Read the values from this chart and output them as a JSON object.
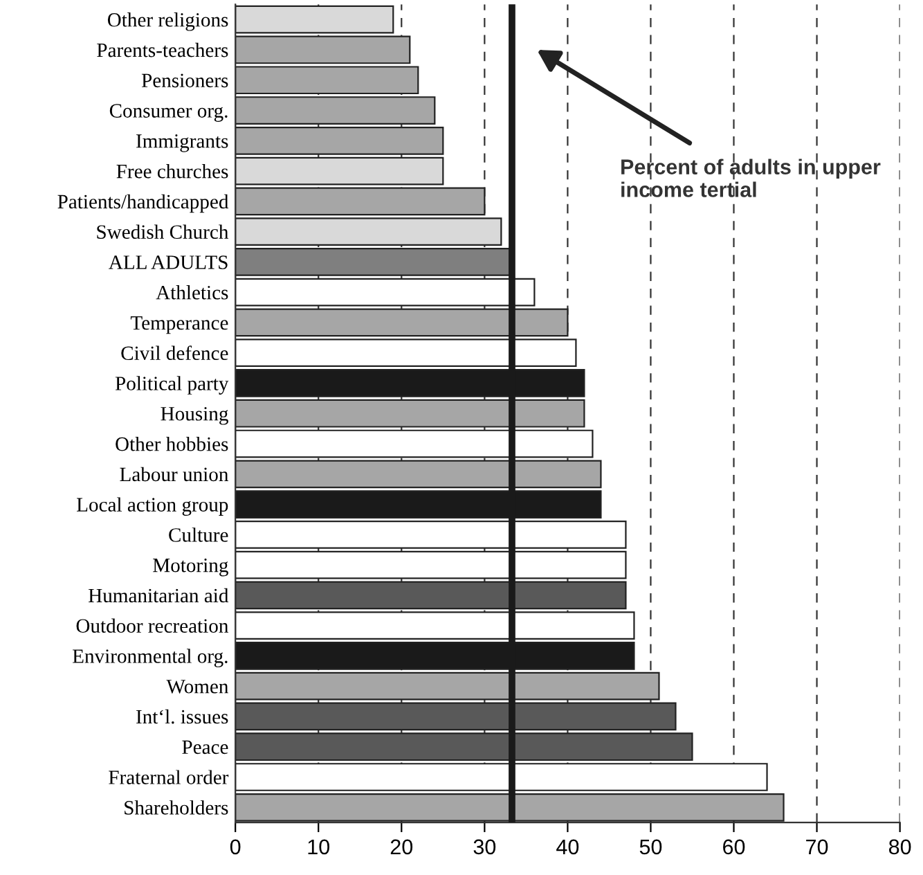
{
  "chart_data": {
    "type": "bar",
    "orientation": "horizontal",
    "categories": [
      "Other religions",
      "Parents-teachers",
      "Pensioners",
      "Consumer org.",
      "Immigrants",
      "Free churches",
      "Patients/handicapped",
      "Swedish Church",
      "ALL ADULTS",
      "Athletics",
      "Temperance",
      "Civil defence",
      "Political party",
      "Housing",
      "Other hobbies",
      "Labour union",
      "Local action group",
      "Culture",
      "Motoring",
      "Humanitarian aid",
      "Outdoor recreation",
      "Environmental org.",
      "Women",
      "Int‘l. issues",
      "Peace",
      "Fraternal order",
      "Shareholders"
    ],
    "values": [
      19,
      21,
      22,
      24,
      25,
      25,
      30,
      32,
      33,
      36,
      40,
      41,
      42,
      42,
      43,
      44,
      44,
      47,
      47,
      47,
      48,
      48,
      51,
      53,
      55,
      64,
      66
    ],
    "colors": [
      "#d9d9d9",
      "#a6a6a6",
      "#a6a6a6",
      "#a6a6a6",
      "#a6a6a6",
      "#d9d9d9",
      "#a6a6a6",
      "#d9d9d9",
      "#7f7f7f",
      "#ffffff",
      "#a6a6a6",
      "#ffffff",
      "#1a1a1a",
      "#a6a6a6",
      "#ffffff",
      "#a6a6a6",
      "#1a1a1a",
      "#ffffff",
      "#ffffff",
      "#595959",
      "#ffffff",
      "#1a1a1a",
      "#a6a6a6",
      "#595959",
      "#595959",
      "#ffffff",
      "#a6a6a6"
    ],
    "xlim": [
      0,
      80
    ],
    "xticks": [
      0,
      10,
      20,
      30,
      40,
      50,
      60,
      70,
      80
    ],
    "grid": "x",
    "legend": false,
    "ref_lines": [
      {
        "axis": "x",
        "value": 33.3,
        "label": "Percent of adults in upper income tertial",
        "color": "#1a1a1a"
      }
    ]
  }
}
